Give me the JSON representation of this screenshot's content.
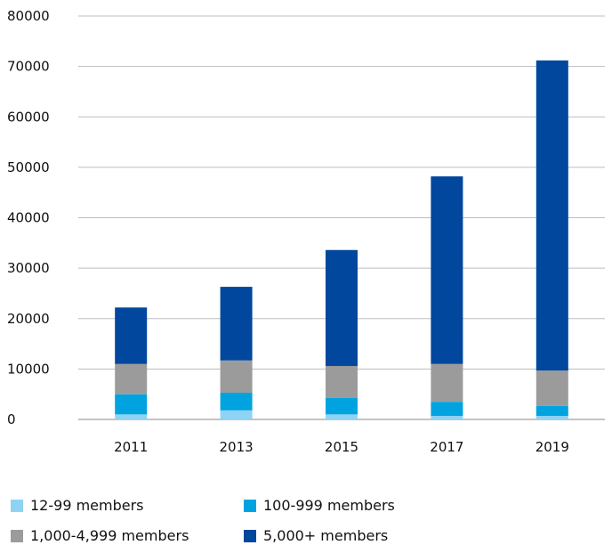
{
  "chart_data": {
    "type": "bar",
    "stacked": true,
    "categories": [
      "2011",
      "2013",
      "2015",
      "2017",
      "2019"
    ],
    "series": [
      {
        "name": "12-99 members",
        "color": "#8fd3f4",
        "values": [
          1000,
          1800,
          1000,
          700,
          700
        ]
      },
      {
        "name": "100-999 members",
        "color": "#00a3e0",
        "values": [
          4000,
          3500,
          3300,
          2800,
          2000
        ]
      },
      {
        "name": "1,000-4,999 members",
        "color": "#9b9b9b",
        "values": [
          6000,
          6400,
          6300,
          7500,
          7000
        ]
      },
      {
        "name": "5,000+ members",
        "color": "#00479d",
        "values": [
          11200,
          14600,
          23000,
          37200,
          61500
        ]
      }
    ],
    "yticks": [
      "0",
      "10000",
      "20000",
      "30000",
      "40000",
      "50000",
      "60000",
      "70000",
      "80000"
    ],
    "ylim": [
      0,
      80000
    ],
    "grid": true,
    "legend_position": "bottom",
    "title": "",
    "xlabel": "",
    "ylabel": ""
  }
}
